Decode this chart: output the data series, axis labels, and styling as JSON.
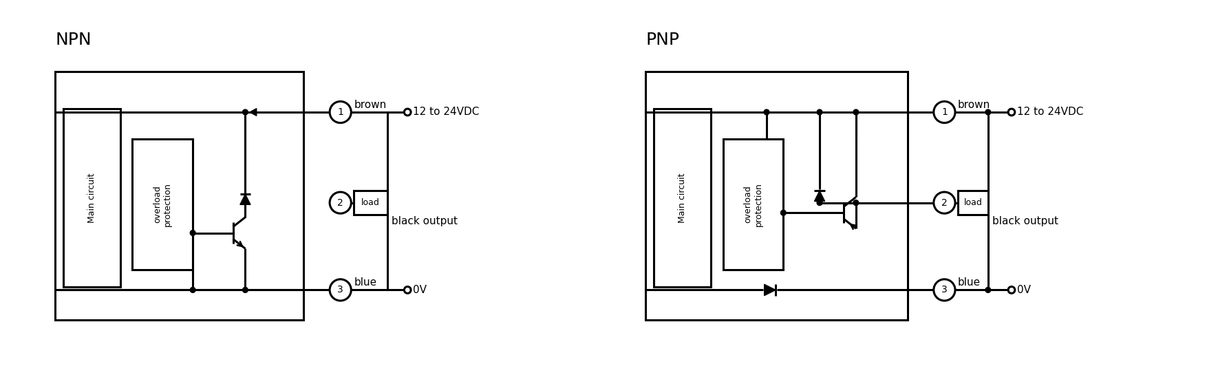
{
  "title_npn": "NPN",
  "title_pnp": "PNP",
  "label_brown": "brown",
  "label_voltage": "12 to 24VDC",
  "label_black": "black output",
  "label_blue": "blue",
  "label_0v": "0V",
  "label_load": "load",
  "label_main": "Main circuit",
  "label_overload": "overload\nprotection",
  "bg_color": "#ffffff",
  "line_color": "#000000",
  "lw": 2.2,
  "fig_width": 17.54,
  "fig_height": 5.61
}
